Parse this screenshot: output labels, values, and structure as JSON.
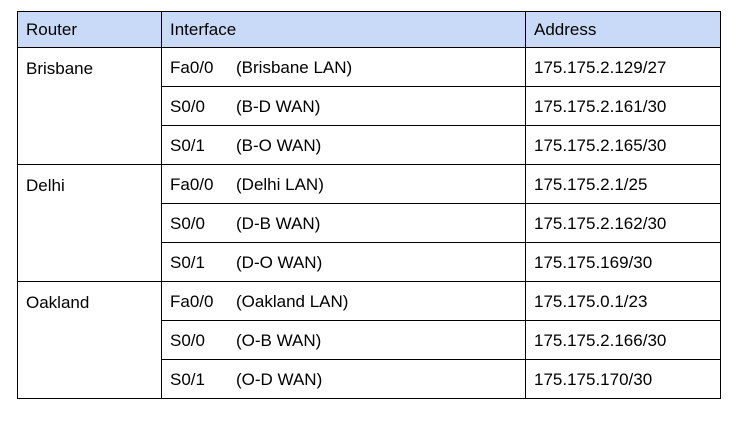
{
  "headers": {
    "router": "Router",
    "interface": "Interface",
    "address": "Address"
  },
  "groups": [
    {
      "router": "Brisbane",
      "rows": [
        {
          "port": "Fa0/0",
          "desc": "(Brisbane LAN)",
          "address": "175.175.2.129/27"
        },
        {
          "port": "S0/0",
          "desc": "(B-D WAN)",
          "address": "175.175.2.161/30"
        },
        {
          "port": "S0/1",
          "desc": "(B-O WAN)",
          "address": "175.175.2.165/30"
        }
      ]
    },
    {
      "router": "Delhi",
      "rows": [
        {
          "port": "Fa0/0",
          "desc": "(Delhi LAN)",
          "address": "175.175.2.1/25"
        },
        {
          "port": "S0/0",
          "desc": "(D-B WAN)",
          "address": "175.175.2.162/30"
        },
        {
          "port": "S0/1",
          "desc": "(D-O WAN)",
          "address": "175.175.169/30"
        }
      ]
    },
    {
      "router": "Oakland",
      "rows": [
        {
          "port": "Fa0/0",
          "desc": "(Oakland LAN)",
          "address": "175.175.0.1/23"
        },
        {
          "port": "S0/0",
          "desc": "(O-B WAN)",
          "address": "175.175.2.166/30"
        },
        {
          "port": "S0/1",
          "desc": "(O-D WAN)",
          "address": "175.175.170/30"
        }
      ]
    }
  ]
}
